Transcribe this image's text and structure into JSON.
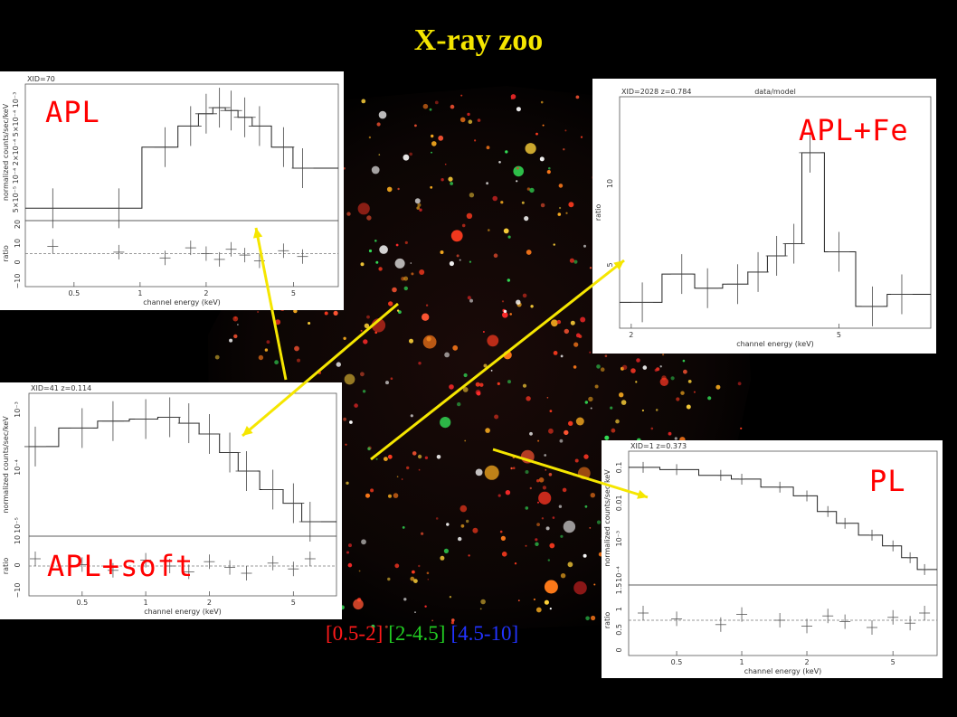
{
  "title": "X-ray zoo",
  "colors": {
    "title": "#f5e600",
    "arrow": "#f5e600",
    "label": "#ff0000",
    "band_soft": "#ff1a1a",
    "band_mid": "#22cc22",
    "band_hard": "#2233ff"
  },
  "bands": [
    "[0.5-2]",
    "[2-4.5]",
    "[4.5-10]"
  ],
  "chart_data": [
    {
      "id": "apl",
      "type": "line",
      "label": "APL",
      "panel_header": "XID=70",
      "ylabel_top": "normalized counts/sec/keV",
      "ytick_top": "5×10⁻⁵ 10⁻⁴ 2×10⁻⁴ 5×10⁻⁴ 10⁻³",
      "ylabel_bottom": "ratio",
      "yticks_bottom": [
        "−10",
        "0",
        "10",
        "20"
      ],
      "xlabel": "channel energy (keV)",
      "xticks": [
        "0.5",
        "1",
        "2",
        "5"
      ],
      "x": [
        0.4,
        0.8,
        1.3,
        1.7,
        2.0,
        2.3,
        2.6,
        3.0,
        3.5,
        4.5,
        5.5
      ],
      "y": [
        4e-05,
        4e-05,
        0.0003,
        0.0006,
        0.0009,
        0.0011,
        0.001,
        0.0008,
        0.0006,
        0.0003,
        0.00015
      ]
    },
    {
      "id": "aplfe",
      "type": "line",
      "label": "APL+Fe",
      "panel_header": "XID=2028   z=0.784",
      "panel_title": "data/model",
      "ylabel": "ratio",
      "yticks": [
        "5",
        "10"
      ],
      "xlabel": "channel energy (keV)",
      "xticks": [
        "2",
        "5"
      ],
      "x": [
        2.1,
        2.5,
        2.8,
        3.2,
        3.5,
        3.8,
        4.1,
        4.4,
        5.0,
        5.8,
        6.6
      ],
      "y": [
        1.1,
        2.5,
        1.8,
        2.0,
        2.6,
        3.4,
        4.0,
        8.5,
        3.6,
        0.9,
        1.5
      ]
    },
    {
      "id": "aplsoft",
      "type": "line",
      "label": "APL+soft",
      "panel_header": "XID=41   z=0.114",
      "ylabel_top": "normalized counts/sec/keV",
      "yticks_top": [
        "10⁻³",
        "10⁻⁴",
        "10⁻⁵"
      ],
      "ylabel_bottom": "ratio",
      "yticks_bottom": [
        "−10",
        "0",
        "10"
      ],
      "xlabel": "channel energy (keV)",
      "xticks": [
        "0.5",
        "1",
        "2",
        "5"
      ],
      "x": [
        0.3,
        0.5,
        0.7,
        1.0,
        1.3,
        1.6,
        2.0,
        2.5,
        3.0,
        4.0,
        5.0,
        6.0
      ],
      "y": [
        0.0005,
        0.001,
        0.0013,
        0.0014,
        0.0015,
        0.0012,
        0.0008,
        0.0004,
        0.0002,
        0.0001,
        6e-05,
        3e-05
      ]
    },
    {
      "id": "pl",
      "type": "line",
      "label": "PL",
      "panel_header": "XID=1    z=0.373",
      "ylabel_top": "normalized counts/sec/keV",
      "yticks_top": [
        "0.1",
        "0.01",
        "10⁻³",
        "10⁻⁴"
      ],
      "ylabel_bottom": "ratio",
      "yticks_bottom": [
        "0",
        "0.5",
        "1",
        "1.5"
      ],
      "xlabel": "channel energy (keV)",
      "xticks": [
        "0.5",
        "1",
        "2",
        "5"
      ],
      "x": [
        0.35,
        0.5,
        0.8,
        1.0,
        1.5,
        2.0,
        2.5,
        3.0,
        4.0,
        5.0,
        6.0,
        7.0
      ],
      "y": [
        0.08,
        0.07,
        0.05,
        0.04,
        0.025,
        0.015,
        0.006,
        0.003,
        0.0015,
        0.0008,
        0.0004,
        0.0002
      ]
    }
  ]
}
